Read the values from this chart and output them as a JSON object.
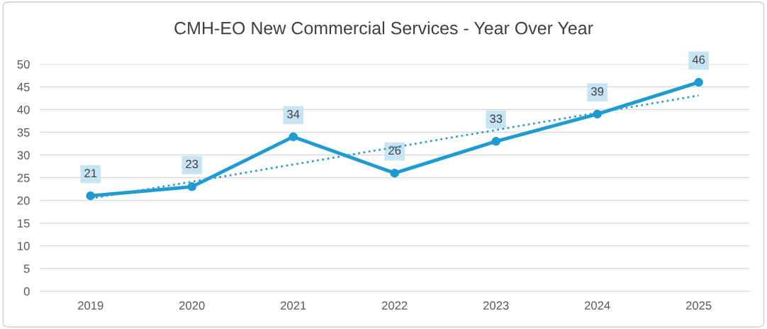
{
  "chart_data": {
    "type": "line",
    "title": "CMH-EO New Commercial Services - Year Over Year",
    "categories": [
      "2019",
      "2020",
      "2021",
      "2022",
      "2023",
      "2024",
      "2025"
    ],
    "series": [
      {
        "color": "#1f9bd1",
        "values": [
          21,
          23,
          34,
          26,
          33,
          39,
          46
        ],
        "marker": "circle",
        "line_style": "solid",
        "data_labels": true
      },
      {
        "type": "line",
        "color": "#2a9fd0",
        "values": [
          20.4,
          24.1,
          27.9,
          31.7,
          35.5,
          39.3,
          43.1
        ],
        "marker": "none",
        "line_style": "dotted"
      }
    ],
    "ylim": [
      0,
      50
    ],
    "yticks": [
      0,
      5,
      10,
      15,
      20,
      25,
      30,
      35,
      40,
      45,
      50
    ],
    "grid": "y",
    "legend": false
  }
}
